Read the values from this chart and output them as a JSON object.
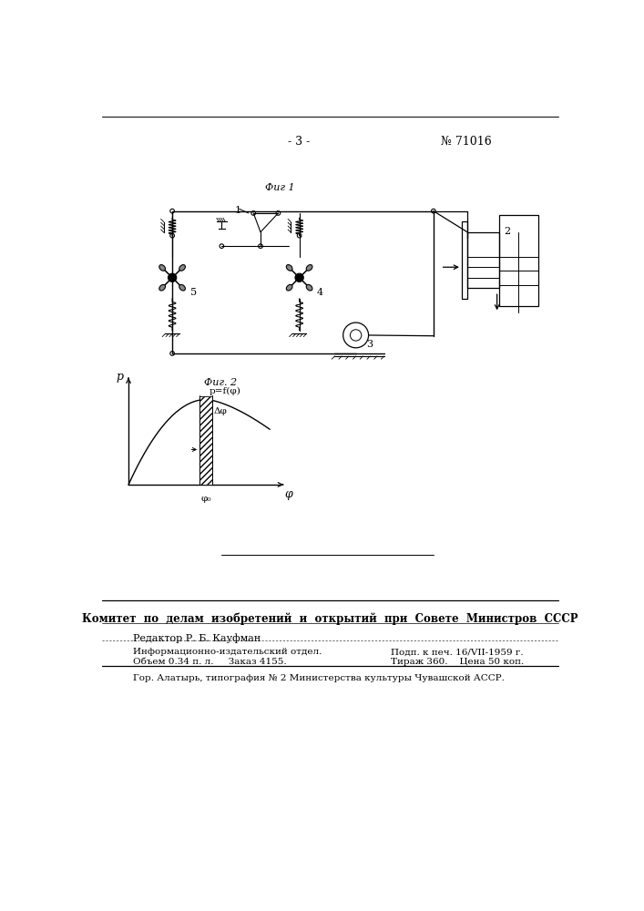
{
  "page_number": "- 3 -",
  "patent_number": "№ 71016",
  "fig1_label": "Фиг 1",
  "fig2_label": "Фиг. 2",
  "footer_bold_text": "Комитет  по  делам  изобретений  и  открытий  при  Совете  Министров  СССР",
  "editor_text": "Редактор Р. Б. Кауфман",
  "info_line1_left": "Информационно-издательский отдел.",
  "info_line1_right": "Подп. к печ. 16/VII-1959 г.",
  "info_line2_left": "Объем 0.34 п. л.     Заказ 4155.",
  "info_line2_right": "Тираж 360.    Цена 50 коп.",
  "bottom_text": "Гор. Алатырь, типография № 2 Министерства культуры Чувашской АССР.",
  "bg_color": "#ffffff",
  "text_color": "#000000"
}
